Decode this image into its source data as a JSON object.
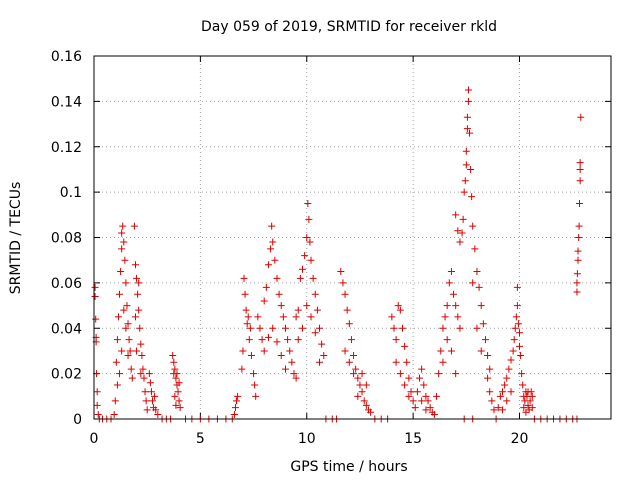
{
  "chart_data": {
    "type": "scatter",
    "title": "Day 059 of 2019, SRMTID for receiver rkld",
    "xlabel": "GPS time / hours",
    "ylabel": "SRMTID / TECUs",
    "xlim": [
      0,
      24.3
    ],
    "ylim": [
      0,
      0.16
    ],
    "x_ticks": [
      0,
      5,
      10,
      15,
      20
    ],
    "x_tick_labels": [
      "0",
      "5",
      "10",
      "15",
      "20"
    ],
    "y_ticks": [
      0,
      0.02,
      0.04,
      0.06,
      0.08,
      0.1,
      0.12,
      0.14,
      0.16
    ],
    "y_tick_labels": [
      "0",
      "0.02",
      "0.04",
      "0.06",
      "0.08",
      "0.1",
      "0.12",
      "0.14",
      "0.16"
    ],
    "grid": true,
    "marker": "plus",
    "marker_color": "#dd0000",
    "series": [
      {
        "name": "SRMTID",
        "points": [
          [
            0.05,
            0.058
          ],
          [
            0.05,
            0.054
          ],
          [
            0.08,
            0.044
          ],
          [
            0.1,
            0.036
          ],
          [
            0.1,
            0.034
          ],
          [
            0.12,
            0.02
          ],
          [
            0.15,
            0.012
          ],
          [
            0.15,
            0.006
          ],
          [
            0.2,
            0.002
          ],
          [
            0.25,
            0.0
          ],
          [
            0.4,
            0.0
          ],
          [
            0.6,
            0.0
          ],
          [
            0.8,
            0.0
          ],
          [
            0.95,
            0.002
          ],
          [
            1.0,
            0.008
          ],
          [
            1.05,
            0.025
          ],
          [
            1.1,
            0.035
          ],
          [
            1.15,
            0.045
          ],
          [
            1.2,
            0.055
          ],
          [
            1.25,
            0.065
          ],
          [
            1.3,
            0.075
          ],
          [
            1.3,
            0.082
          ],
          [
            1.35,
            0.085
          ],
          [
            1.4,
            0.078
          ],
          [
            1.45,
            0.07
          ],
          [
            1.5,
            0.06
          ],
          [
            1.55,
            0.05
          ],
          [
            1.6,
            0.042
          ],
          [
            1.65,
            0.035
          ],
          [
            1.7,
            0.03
          ],
          [
            1.75,
            0.022
          ],
          [
            1.8,
            0.018
          ],
          [
            1.6,
            0.028
          ],
          [
            1.4,
            0.048
          ],
          [
            1.5,
            0.04
          ],
          [
            1.3,
            0.03
          ],
          [
            1.2,
            0.02
          ],
          [
            1.1,
            0.015
          ],
          [
            1.9,
            0.085
          ],
          [
            1.95,
            0.068
          ],
          [
            2.0,
            0.062
          ],
          [
            2.05,
            0.055
          ],
          [
            2.1,
            0.048
          ],
          [
            2.15,
            0.04
          ],
          [
            2.2,
            0.033
          ],
          [
            2.25,
            0.028
          ],
          [
            2.3,
            0.022
          ],
          [
            2.35,
            0.018
          ],
          [
            2.4,
            0.012
          ],
          [
            2.45,
            0.008
          ],
          [
            2.5,
            0.004
          ],
          [
            2.0,
            0.03
          ],
          [
            2.2,
            0.02
          ],
          [
            1.95,
            0.045
          ],
          [
            2.1,
            0.06
          ],
          [
            2.6,
            0.02
          ],
          [
            2.7,
            0.012
          ],
          [
            2.75,
            0.008
          ],
          [
            2.8,
            0.005
          ],
          [
            2.9,
            0.004
          ],
          [
            3.0,
            0.002
          ],
          [
            2.85,
            0.01
          ],
          [
            2.65,
            0.016
          ],
          [
            3.2,
            0.0
          ],
          [
            3.4,
            0.0
          ],
          [
            3.6,
            0.0
          ],
          [
            3.7,
            0.028
          ],
          [
            3.75,
            0.025
          ],
          [
            3.8,
            0.022
          ],
          [
            3.85,
            0.018
          ],
          [
            3.9,
            0.015
          ],
          [
            3.95,
            0.012
          ],
          [
            4.0,
            0.008
          ],
          [
            4.05,
            0.005
          ],
          [
            3.75,
            0.02
          ],
          [
            3.9,
            0.02
          ],
          [
            4.0,
            0.016
          ],
          [
            3.8,
            0.01
          ],
          [
            3.85,
            0.006
          ],
          [
            4.3,
            0.0
          ],
          [
            4.6,
            0.0
          ],
          [
            5.0,
            0.0
          ],
          [
            5.4,
            0.0
          ],
          [
            5.8,
            0.0
          ],
          [
            6.2,
            0.0
          ],
          [
            6.5,
            0.0
          ],
          [
            6.6,
            0.002
          ],
          [
            6.65,
            0.005
          ],
          [
            6.7,
            0.008
          ],
          [
            6.75,
            0.01
          ],
          [
            7.05,
            0.062
          ],
          [
            7.1,
            0.055
          ],
          [
            7.15,
            0.048
          ],
          [
            7.2,
            0.042
          ],
          [
            7.3,
            0.035
          ],
          [
            7.4,
            0.028
          ],
          [
            7.5,
            0.02
          ],
          [
            7.55,
            0.015
          ],
          [
            7.6,
            0.01
          ],
          [
            7.0,
            0.03
          ],
          [
            6.95,
            0.022
          ],
          [
            7.25,
            0.045
          ],
          [
            7.35,
            0.04
          ],
          [
            7.7,
            0.045
          ],
          [
            7.8,
            0.04
          ],
          [
            7.9,
            0.035
          ],
          [
            8.0,
            0.052
          ],
          [
            8.1,
            0.058
          ],
          [
            8.2,
            0.068
          ],
          [
            8.3,
            0.075
          ],
          [
            8.35,
            0.085
          ],
          [
            8.4,
            0.078
          ],
          [
            8.5,
            0.07
          ],
          [
            8.6,
            0.062
          ],
          [
            8.7,
            0.055
          ],
          [
            8.8,
            0.05
          ],
          [
            8.9,
            0.045
          ],
          [
            9.0,
            0.04
          ],
          [
            9.1,
            0.035
          ],
          [
            9.2,
            0.03
          ],
          [
            9.3,
            0.025
          ],
          [
            9.4,
            0.02
          ],
          [
            9.5,
            0.018
          ],
          [
            8.0,
            0.03
          ],
          [
            8.2,
            0.036
          ],
          [
            8.4,
            0.04
          ],
          [
            8.6,
            0.034
          ],
          [
            8.8,
            0.028
          ],
          [
            9.0,
            0.022
          ],
          [
            9.5,
            0.045
          ],
          [
            9.6,
            0.048
          ],
          [
            9.7,
            0.062
          ],
          [
            9.8,
            0.066
          ],
          [
            9.9,
            0.072
          ],
          [
            10.0,
            0.08
          ],
          [
            10.05,
            0.095
          ],
          [
            10.1,
            0.088
          ],
          [
            10.15,
            0.078
          ],
          [
            10.2,
            0.07
          ],
          [
            10.3,
            0.062
          ],
          [
            10.4,
            0.055
          ],
          [
            10.5,
            0.048
          ],
          [
            10.6,
            0.04
          ],
          [
            10.7,
            0.033
          ],
          [
            10.8,
            0.028
          ],
          [
            9.6,
            0.035
          ],
          [
            9.8,
            0.04
          ],
          [
            10.0,
            0.05
          ],
          [
            10.2,
            0.045
          ],
          [
            10.4,
            0.038
          ],
          [
            10.6,
            0.025
          ],
          [
            10.9,
            0.0
          ],
          [
            11.2,
            0.0
          ],
          [
            11.4,
            0.0
          ],
          [
            11.6,
            0.065
          ],
          [
            11.7,
            0.06
          ],
          [
            11.8,
            0.055
          ],
          [
            11.9,
            0.048
          ],
          [
            12.0,
            0.042
          ],
          [
            12.1,
            0.035
          ],
          [
            12.2,
            0.028
          ],
          [
            12.3,
            0.022
          ],
          [
            12.4,
            0.018
          ],
          [
            12.5,
            0.015
          ],
          [
            12.6,
            0.012
          ],
          [
            12.7,
            0.008
          ],
          [
            12.8,
            0.006
          ],
          [
            12.9,
            0.004
          ],
          [
            13.0,
            0.003
          ],
          [
            11.8,
            0.03
          ],
          [
            12.0,
            0.025
          ],
          [
            12.2,
            0.02
          ],
          [
            12.4,
            0.01
          ],
          [
            12.6,
            0.02
          ],
          [
            12.8,
            0.015
          ],
          [
            13.2,
            0.0
          ],
          [
            13.5,
            0.0
          ],
          [
            13.8,
            0.0
          ],
          [
            14.0,
            0.045
          ],
          [
            14.1,
            0.04
          ],
          [
            14.2,
            0.035
          ],
          [
            14.3,
            0.05
          ],
          [
            14.4,
            0.048
          ],
          [
            14.5,
            0.04
          ],
          [
            14.6,
            0.032
          ],
          [
            14.7,
            0.025
          ],
          [
            14.8,
            0.018
          ],
          [
            14.9,
            0.012
          ],
          [
            15.0,
            0.008
          ],
          [
            15.1,
            0.005
          ],
          [
            14.2,
            0.025
          ],
          [
            14.4,
            0.02
          ],
          [
            14.6,
            0.015
          ],
          [
            14.8,
            0.01
          ],
          [
            15.2,
            0.012
          ],
          [
            15.3,
            0.018
          ],
          [
            15.4,
            0.022
          ],
          [
            15.5,
            0.015
          ],
          [
            15.6,
            0.01
          ],
          [
            15.7,
            0.008
          ],
          [
            15.8,
            0.005
          ],
          [
            15.9,
            0.003
          ],
          [
            16.0,
            0.002
          ],
          [
            15.4,
            0.008
          ],
          [
            15.6,
            0.004
          ],
          [
            16.1,
            0.01
          ],
          [
            16.2,
            0.02
          ],
          [
            16.3,
            0.03
          ],
          [
            16.4,
            0.04
          ],
          [
            16.5,
            0.045
          ],
          [
            16.6,
            0.05
          ],
          [
            16.7,
            0.06
          ],
          [
            16.8,
            0.065
          ],
          [
            16.9,
            0.055
          ],
          [
            17.0,
            0.05
          ],
          [
            17.1,
            0.045
          ],
          [
            17.2,
            0.04
          ],
          [
            16.4,
            0.025
          ],
          [
            16.6,
            0.035
          ],
          [
            16.8,
            0.03
          ],
          [
            17.0,
            0.02
          ],
          [
            17.0,
            0.09
          ],
          [
            17.1,
            0.083
          ],
          [
            17.2,
            0.078
          ],
          [
            17.3,
            0.082
          ],
          [
            17.35,
            0.088
          ],
          [
            17.4,
            0.1
          ],
          [
            17.45,
            0.105
          ],
          [
            17.5,
            0.112
          ],
          [
            17.5,
            0.118
          ],
          [
            17.55,
            0.128
          ],
          [
            17.55,
            0.133
          ],
          [
            17.6,
            0.145
          ],
          [
            17.6,
            0.14
          ],
          [
            17.65,
            0.126
          ],
          [
            17.7,
            0.11
          ],
          [
            17.75,
            0.098
          ],
          [
            17.8,
            0.085
          ],
          [
            17.9,
            0.075
          ],
          [
            18.0,
            0.065
          ],
          [
            18.1,
            0.058
          ],
          [
            18.2,
            0.05
          ],
          [
            18.3,
            0.042
          ],
          [
            18.4,
            0.035
          ],
          [
            18.5,
            0.028
          ],
          [
            18.6,
            0.022
          ],
          [
            17.8,
            0.06
          ],
          [
            18.0,
            0.04
          ],
          [
            18.2,
            0.03
          ],
          [
            17.4,
            0.0
          ],
          [
            17.8,
            0.0
          ],
          [
            18.5,
            0.018
          ],
          [
            18.6,
            0.012
          ],
          [
            18.7,
            0.008
          ],
          [
            18.8,
            0.004
          ],
          [
            18.9,
            0.0
          ],
          [
            19.0,
            0.005
          ],
          [
            19.1,
            0.01
          ],
          [
            19.2,
            0.012
          ],
          [
            19.3,
            0.015
          ],
          [
            19.4,
            0.018
          ],
          [
            19.5,
            0.022
          ],
          [
            19.6,
            0.026
          ],
          [
            19.7,
            0.03
          ],
          [
            19.75,
            0.035
          ],
          [
            19.8,
            0.04
          ],
          [
            19.85,
            0.045
          ],
          [
            19.9,
            0.05
          ],
          [
            19.9,
            0.058
          ],
          [
            19.95,
            0.042
          ],
          [
            20.0,
            0.038
          ],
          [
            20.0,
            0.032
          ],
          [
            20.05,
            0.028
          ],
          [
            20.1,
            0.02
          ],
          [
            20.15,
            0.015
          ],
          [
            20.2,
            0.01
          ],
          [
            19.6,
            0.012
          ],
          [
            19.4,
            0.008
          ],
          [
            19.2,
            0.004
          ],
          [
            20.2,
            0.005
          ],
          [
            20.25,
            0.008
          ],
          [
            20.3,
            0.012
          ],
          [
            20.35,
            0.01
          ],
          [
            20.4,
            0.006
          ],
          [
            20.45,
            0.004
          ],
          [
            20.5,
            0.008
          ],
          [
            20.55,
            0.012
          ],
          [
            20.6,
            0.01
          ],
          [
            20.6,
            0.005
          ],
          [
            20.4,
            0.012
          ],
          [
            20.3,
            0.003
          ],
          [
            20.7,
            0.0
          ],
          [
            21.0,
            0.0
          ],
          [
            21.3,
            0.0
          ],
          [
            21.6,
            0.0
          ],
          [
            21.9,
            0.0
          ],
          [
            22.2,
            0.0
          ],
          [
            22.5,
            0.0
          ],
          [
            22.7,
            0.0
          ],
          [
            22.7,
            0.056
          ],
          [
            22.7,
            0.06
          ],
          [
            22.72,
            0.064
          ],
          [
            22.75,
            0.07
          ],
          [
            22.75,
            0.074
          ],
          [
            22.78,
            0.08
          ],
          [
            22.8,
            0.085
          ],
          [
            22.82,
            0.095
          ],
          [
            22.85,
            0.105
          ],
          [
            22.85,
            0.11
          ],
          [
            22.85,
            0.113
          ],
          [
            22.88,
            0.133
          ]
        ]
      }
    ]
  }
}
